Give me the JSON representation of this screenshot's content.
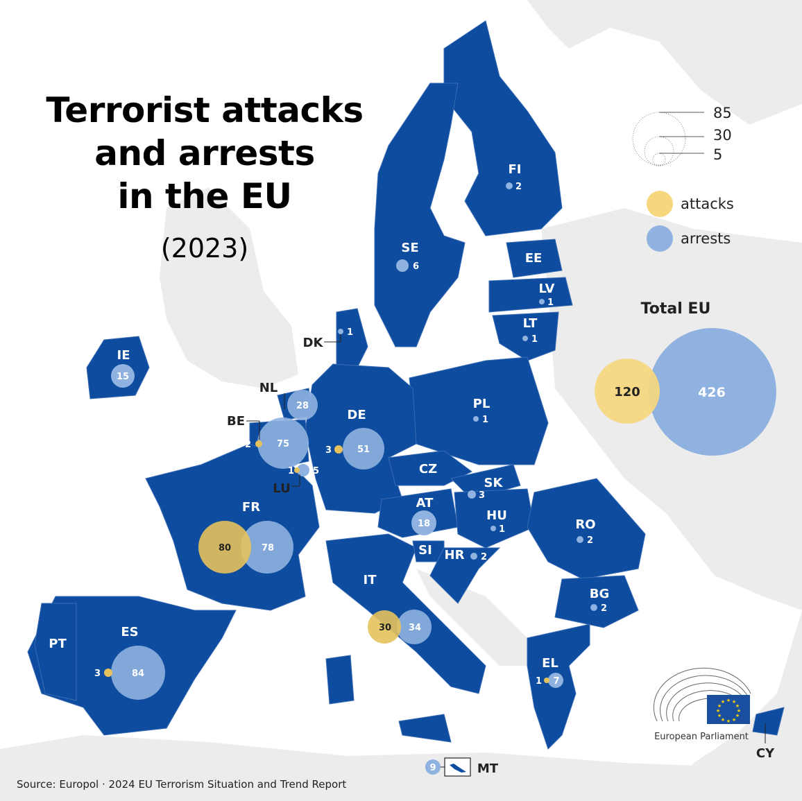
{
  "title_lines": [
    "Terrorist attacks",
    "and arrests",
    "in the EU"
  ],
  "subtitle": "(2023)",
  "source": "Source: Europol · 2024 EU Terrorism Situation and Trend Report",
  "colors": {
    "eu_fill": "#0d4c9e",
    "non_eu_fill": "#ececec",
    "attacks": "#e6c25c",
    "arrests": "#8fb2e0"
  },
  "legend": {
    "scale_values": [
      "85",
      "30",
      "5"
    ],
    "attacks_label": "attacks",
    "arrests_label": "arrests"
  },
  "total": {
    "label": "Total EU",
    "attacks": "120",
    "arrests": "426"
  },
  "countries": [
    {
      "code": "FI",
      "arrests": "2"
    },
    {
      "code": "SE",
      "arrests": "6"
    },
    {
      "code": "EE"
    },
    {
      "code": "LV",
      "arrests": "1"
    },
    {
      "code": "LT",
      "arrests": "1"
    },
    {
      "code": "DK",
      "arrests": "1"
    },
    {
      "code": "IE",
      "arrests": "15"
    },
    {
      "code": "NL",
      "arrests": "28"
    },
    {
      "code": "BE",
      "attacks": "2",
      "arrests": "75"
    },
    {
      "code": "LU",
      "attacks": "1",
      "arrests": "5"
    },
    {
      "code": "DE",
      "attacks": "3",
      "arrests": "51"
    },
    {
      "code": "PL",
      "arrests": "1"
    },
    {
      "code": "CZ"
    },
    {
      "code": "SK",
      "arrests": "3"
    },
    {
      "code": "AT",
      "arrests": "18"
    },
    {
      "code": "HU",
      "arrests": "1"
    },
    {
      "code": "RO",
      "arrests": "2"
    },
    {
      "code": "FR",
      "attacks": "80",
      "arrests": "78"
    },
    {
      "code": "SI"
    },
    {
      "code": "HR",
      "arrests": "2"
    },
    {
      "code": "IT",
      "attacks": "30",
      "arrests": "34"
    },
    {
      "code": "BG",
      "arrests": "2"
    },
    {
      "code": "PT"
    },
    {
      "code": "ES",
      "attacks": "3",
      "arrests": "84"
    },
    {
      "code": "EL",
      "attacks": "1",
      "arrests": "7"
    },
    {
      "code": "CY"
    },
    {
      "code": "MT",
      "arrests": "9"
    }
  ],
  "logo_text": "European Parliament"
}
